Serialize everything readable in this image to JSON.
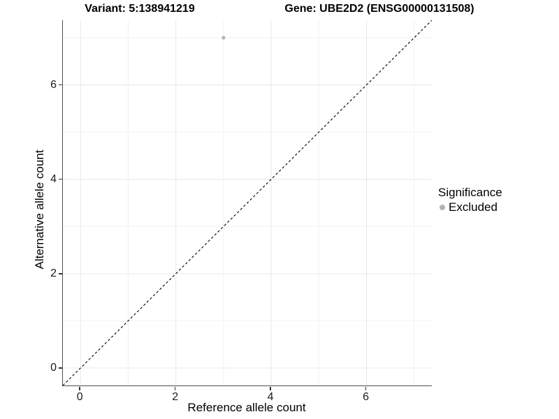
{
  "titles": {
    "variant": "Variant: 5:138941219",
    "gene": "Gene: UBE2D2 (ENSG00000131508)"
  },
  "legend": {
    "title": "Significance",
    "items": [
      {
        "label": "Excluded",
        "color": "#b3b3b3"
      }
    ]
  },
  "chart_data": {
    "type": "scatter",
    "title_left": "Variant: 5:138941219",
    "title_right": "Gene: UBE2D2 (ENSG00000131508)",
    "xlabel": "Reference allele count",
    "ylabel": "Alternative allele count",
    "xlim": [
      -0.37,
      7.37
    ],
    "ylim": [
      -0.37,
      7.37
    ],
    "xticks": [
      0,
      2,
      4,
      6
    ],
    "yticks": [
      0,
      2,
      4,
      6
    ],
    "grid_major": [
      0,
      2,
      4,
      6
    ],
    "grid_minor": [
      1,
      3,
      5,
      7
    ],
    "grid": "on",
    "legend_position": "right",
    "series": [
      {
        "name": "Excluded",
        "color": "#b3b3b3",
        "points": [
          {
            "x": 3,
            "y": 7
          }
        ]
      }
    ],
    "reference_line": {
      "kind": "identity y=x",
      "style": "dashed",
      "color": "#000000",
      "from": [
        -0.37,
        -0.37
      ],
      "to": [
        7.37,
        7.37
      ]
    }
  },
  "colors": {
    "background": "#ffffff",
    "grid_major": "#e8e8e8",
    "grid_minor": "#f2f2f2",
    "axis_line": "#4d4d4d",
    "tick_label": "#1a1a1a",
    "point": "#b3b3b3",
    "reference_line": "#000000"
  }
}
